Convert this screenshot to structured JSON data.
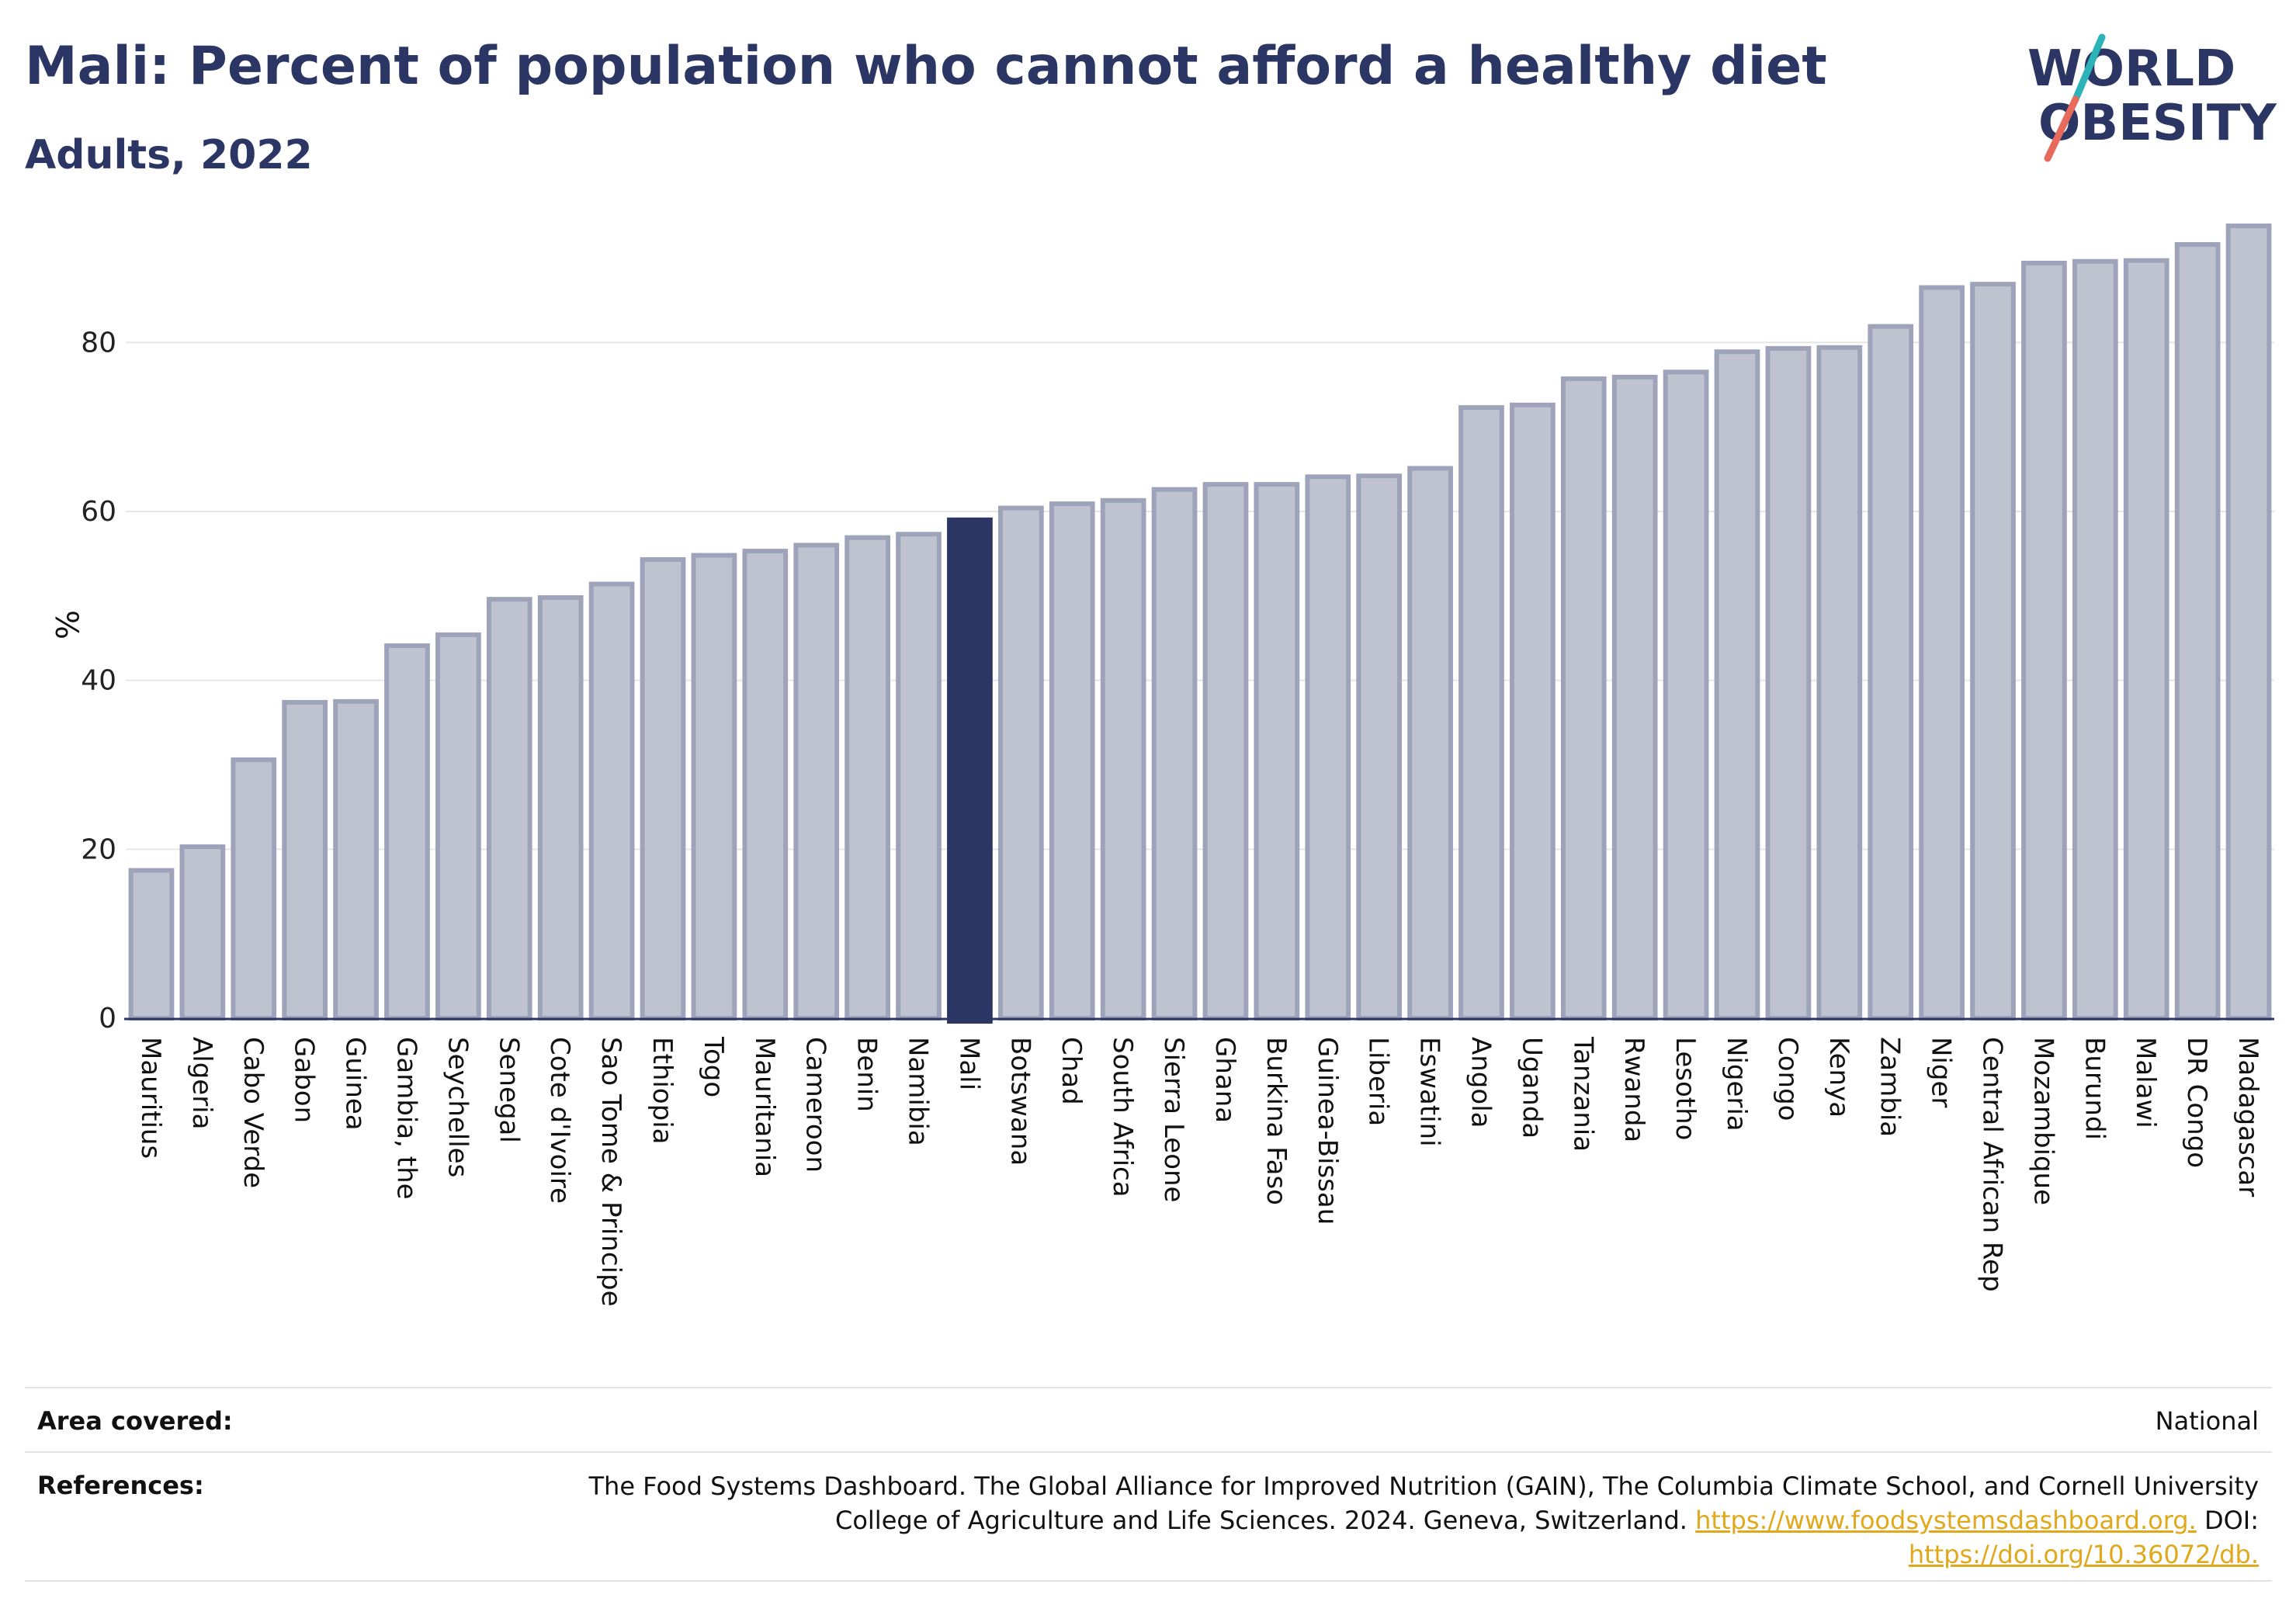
{
  "header": {
    "title": "Mali: Percent of population who cannot afford a healthy diet",
    "subtitle": "Adults, 2022"
  },
  "logo": {
    "line1": "WORLD",
    "line2": "OBESITY",
    "colors": {
      "text": "#2b3664",
      "slash_teal": "#2bb3b8",
      "slash_coral": "#e86a5c"
    }
  },
  "colors": {
    "bar": "#bfc3d0",
    "bar_stroke": "#9ea3ba",
    "highlight": "#2b3664",
    "grid": "#e6e6e6",
    "axis": "#2b3664"
  },
  "chart_data": {
    "type": "bar",
    "ylabel": "%",
    "ylim": [
      0,
      95
    ],
    "yticks": [
      0,
      20,
      40,
      60,
      80
    ],
    "grid": true,
    "highlight": "Mali",
    "categories": [
      "Mauritius",
      "Algeria",
      "Cabo Verde",
      "Gabon",
      "Guinea",
      "Gambia, the",
      "Seychelles",
      "Senegal",
      "Cote d'Ivoire",
      "Sao Tome & Principe",
      "Ethiopia",
      "Togo",
      "Mauritania",
      "Cameroon",
      "Benin",
      "Namibia",
      "Mali",
      "Botswana",
      "Chad",
      "South Africa",
      "Sierra Leone",
      "Ghana",
      "Burkina Faso",
      "Guinea-Bissau",
      "Liberia",
      "Eswatini",
      "Angola",
      "Uganda",
      "Tanzania",
      "Rwanda",
      "Lesotho",
      "Nigeria",
      "Congo",
      "Kenya",
      "Zambia",
      "Niger",
      "Central African Rep",
      "Mozambique",
      "Burundi",
      "Malawi",
      "DR Congo",
      "Madagascar"
    ],
    "values": [
      17.5,
      20.3,
      30.6,
      37.4,
      37.5,
      44.1,
      45.4,
      49.6,
      49.8,
      51.4,
      54.3,
      54.8,
      55.3,
      56.0,
      56.9,
      57.3,
      59.0,
      60.4,
      60.9,
      61.3,
      62.6,
      63.2,
      63.2,
      64.1,
      64.2,
      65.1,
      72.3,
      72.6,
      75.7,
      75.9,
      76.5,
      78.9,
      79.3,
      79.4,
      81.9,
      86.5,
      86.9,
      89.4,
      89.6,
      89.7,
      91.6,
      93.8
    ]
  },
  "footer": {
    "area_label": "Area covered:",
    "area_value": "National",
    "ref_label": "References:",
    "ref_text": "The Food Systems Dashboard. The Global Alliance for Improved Nutrition (GAIN), The Columbia Climate School, and Cornell University College of Agriculture and Life Sciences. 2024. Geneva, Switzerland.",
    "ref_link1": "https://www.foodsystemsdashboard.org.",
    "ref_doi_label": "DOI:",
    "ref_link2": "https://doi.org/10.36072/db."
  }
}
